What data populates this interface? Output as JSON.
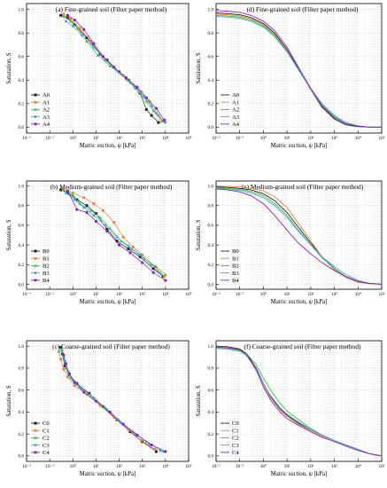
{
  "figure": {
    "x_ticks": [
      "10⁻²",
      "10⁻¹",
      "10⁰",
      "10¹",
      "10²",
      "10³",
      "10⁴",
      "10⁵"
    ],
    "y_ticks": [
      "0.0",
      "0.2",
      "0.4",
      "0.6",
      "0.8",
      "1.0"
    ],
    "colors": {
      "0": "#222222",
      "1": "#e8833a",
      "2": "#3fbf3f",
      "3": "#3fa9e0",
      "4": "#8b1fc7"
    }
  },
  "chart_data": [
    {
      "type": "scatter",
      "title": "(a) Fine-grained soil (Filter paper method)",
      "xlabel": "Matric suction, ψ [kPa]",
      "ylabel": "Saturation, S",
      "x_scale": "log",
      "xlim": [
        0.01,
        100000
      ],
      "ylim": [
        -0.05,
        1.05
      ],
      "legend_position": "bottom-left",
      "series": [
        {
          "name": "A0",
          "x": [
            0.3,
            0.6,
            1.2,
            4,
            15,
            30,
            100,
            250,
            500,
            800,
            1500,
            2500,
            5000
          ],
          "y": [
            0.95,
            0.93,
            0.87,
            0.76,
            0.62,
            0.57,
            0.47,
            0.4,
            0.34,
            0.29,
            0.15,
            0.1,
            0.04
          ]
        },
        {
          "name": "A1",
          "x": [
            0.4,
            0.8,
            2,
            6,
            20,
            50,
            150,
            400,
            900,
            2000,
            4000,
            8000
          ],
          "y": [
            0.96,
            0.92,
            0.84,
            0.73,
            0.6,
            0.52,
            0.44,
            0.36,
            0.3,
            0.22,
            0.12,
            0.05
          ]
        },
        {
          "name": "A2",
          "x": [
            0.4,
            0.8,
            1.6,
            4,
            12,
            40,
            120,
            300,
            700,
            1500,
            3000,
            7000
          ],
          "y": [
            0.94,
            0.9,
            0.84,
            0.73,
            0.61,
            0.52,
            0.45,
            0.38,
            0.3,
            0.22,
            0.14,
            0.05
          ]
        },
        {
          "name": "A3",
          "x": [
            0.5,
            1,
            2.5,
            8,
            25,
            80,
            200,
            500,
            1200,
            2500,
            5000,
            10000
          ],
          "y": [
            0.9,
            0.86,
            0.78,
            0.68,
            0.57,
            0.48,
            0.41,
            0.33,
            0.26,
            0.18,
            0.1,
            0.04
          ]
        },
        {
          "name": "A4",
          "x": [
            0.6,
            1.2,
            3,
            8,
            20,
            60,
            200,
            600,
            1500,
            4000,
            9000
          ],
          "y": [
            0.95,
            0.91,
            0.83,
            0.71,
            0.6,
            0.51,
            0.42,
            0.34,
            0.25,
            0.16,
            0.06
          ]
        }
      ]
    },
    {
      "type": "line",
      "title": "(d) Fine-grained soil (Filter paper method)",
      "xlabel": "Matric suction, ψ [kPa]",
      "ylabel": "Saturation, S",
      "x_scale": "log",
      "xlim": [
        0.01,
        100000
      ],
      "ylim": [
        -0.05,
        1.05
      ],
      "legend_position": "bottom-left",
      "series": [
        {
          "name": "A0",
          "x": [
            0.01,
            0.03,
            0.1,
            0.3,
            1,
            3,
            10,
            30,
            100,
            300,
            1000,
            3000,
            10000,
            30000,
            100000
          ],
          "y": [
            0.97,
            0.965,
            0.955,
            0.93,
            0.88,
            0.8,
            0.66,
            0.5,
            0.32,
            0.17,
            0.07,
            0.02,
            0.005,
            0.0,
            0.0
          ]
        },
        {
          "name": "A1",
          "x": [
            0.01,
            0.03,
            0.1,
            0.3,
            1,
            3,
            10,
            30,
            100,
            300,
            1000,
            3000,
            10000,
            30000,
            100000
          ],
          "y": [
            0.96,
            0.955,
            0.945,
            0.92,
            0.87,
            0.79,
            0.65,
            0.49,
            0.32,
            0.18,
            0.08,
            0.03,
            0.01,
            0.0,
            0.0
          ]
        },
        {
          "name": "A2",
          "x": [
            0.01,
            0.03,
            0.1,
            0.3,
            1,
            3,
            10,
            30,
            100,
            300,
            1000,
            3000,
            10000,
            30000,
            100000
          ],
          "y": [
            0.95,
            0.945,
            0.935,
            0.91,
            0.86,
            0.78,
            0.64,
            0.49,
            0.33,
            0.19,
            0.09,
            0.04,
            0.01,
            0.0,
            0.0
          ]
        },
        {
          "name": "A3",
          "x": [
            0.01,
            0.03,
            0.1,
            0.3,
            1,
            3,
            10,
            30,
            100,
            300,
            1000,
            3000,
            10000,
            30000,
            100000
          ],
          "y": [
            0.94,
            0.935,
            0.925,
            0.9,
            0.85,
            0.77,
            0.64,
            0.49,
            0.33,
            0.2,
            0.1,
            0.04,
            0.01,
            0.0,
            0.0
          ]
        },
        {
          "name": "A4",
          "x": [
            0.01,
            0.03,
            0.1,
            0.3,
            1,
            3,
            10,
            30,
            100,
            300,
            1000,
            3000,
            10000,
            30000,
            100000
          ],
          "y": [
            0.99,
            0.985,
            0.975,
            0.95,
            0.9,
            0.82,
            0.68,
            0.51,
            0.33,
            0.18,
            0.08,
            0.03,
            0.01,
            0.0,
            0.0
          ]
        }
      ]
    },
    {
      "type": "scatter",
      "title": "(b) Medium-grained soil (Filter paper method)",
      "xlabel": "Matric suction, ψ [kPa]",
      "ylabel": "Saturation, S",
      "x_scale": "log",
      "xlim": [
        0.01,
        100000
      ],
      "ylim": [
        -0.05,
        1.05
      ],
      "legend_position": "bottom-left",
      "series": [
        {
          "name": "B0",
          "x": [
            0.3,
            0.6,
            1.5,
            4,
            10,
            30,
            80,
            250,
            800,
            3000,
            8000
          ],
          "y": [
            0.96,
            0.93,
            0.86,
            0.8,
            0.72,
            0.56,
            0.44,
            0.36,
            0.28,
            0.16,
            0.08
          ]
        },
        {
          "name": "B1",
          "x": [
            0.4,
            1,
            3,
            8,
            20,
            60,
            150,
            400,
            1000,
            3500,
            9000
          ],
          "y": [
            0.97,
            0.93,
            0.88,
            0.82,
            0.75,
            0.63,
            0.48,
            0.38,
            0.3,
            0.18,
            0.08
          ]
        },
        {
          "name": "B2",
          "x": [
            0.4,
            1,
            2,
            6,
            15,
            40,
            120,
            350,
            1200,
            4000,
            10000
          ],
          "y": [
            0.96,
            0.91,
            0.82,
            0.75,
            0.68,
            0.57,
            0.44,
            0.36,
            0.26,
            0.18,
            0.1
          ]
        },
        {
          "name": "B3",
          "x": [
            0.5,
            1.2,
            3,
            8,
            25,
            80,
            250,
            800,
            2500,
            6000
          ],
          "y": [
            0.93,
            0.86,
            0.78,
            0.7,
            0.6,
            0.48,
            0.39,
            0.3,
            0.2,
            0.11
          ]
        },
        {
          "name": "B4",
          "x": [
            0.6,
            1.5,
            4,
            10,
            30,
            100,
            300,
            1000,
            3000,
            10000
          ],
          "y": [
            0.95,
            0.76,
            0.73,
            0.64,
            0.54,
            0.4,
            0.32,
            0.22,
            0.12,
            0.04
          ]
        }
      ]
    },
    {
      "type": "line",
      "title": "(e) Medium-grained soil (Filter paper method)",
      "xlabel": "Matric suction, ψ [kPa]",
      "ylabel": "Saturation, S",
      "x_scale": "log",
      "xlim": [
        0.01,
        100000
      ],
      "ylim": [
        -0.05,
        1.05
      ],
      "legend_position": "bottom-left",
      "series": [
        {
          "name": "B0",
          "x": [
            0.01,
            0.03,
            0.1,
            0.3,
            1,
            3,
            10,
            30,
            100,
            300,
            1000,
            3000,
            10000,
            30000,
            100000
          ],
          "y": [
            0.99,
            0.985,
            0.975,
            0.96,
            0.92,
            0.85,
            0.73,
            0.58,
            0.42,
            0.28,
            0.16,
            0.08,
            0.03,
            0.01,
            0.0
          ]
        },
        {
          "name": "B1",
          "x": [
            0.01,
            0.03,
            0.1,
            0.3,
            1,
            3,
            10,
            30,
            100,
            300,
            1000,
            3000,
            10000,
            30000,
            100000
          ],
          "y": [
            1.0,
            0.995,
            0.99,
            0.975,
            0.95,
            0.89,
            0.78,
            0.62,
            0.44,
            0.28,
            0.15,
            0.07,
            0.02,
            0.005,
            0.0
          ]
        },
        {
          "name": "B2",
          "x": [
            0.01,
            0.03,
            0.1,
            0.3,
            1,
            3,
            10,
            30,
            100,
            300,
            1000,
            3000,
            10000,
            30000,
            100000
          ],
          "y": [
            0.98,
            0.975,
            0.965,
            0.945,
            0.9,
            0.82,
            0.7,
            0.55,
            0.4,
            0.27,
            0.16,
            0.08,
            0.03,
            0.01,
            0.0
          ]
        },
        {
          "name": "B3",
          "x": [
            0.01,
            0.03,
            0.1,
            0.3,
            1,
            3,
            10,
            30,
            100,
            300,
            1000,
            3000,
            10000,
            30000,
            100000
          ],
          "y": [
            0.97,
            0.965,
            0.955,
            0.93,
            0.88,
            0.8,
            0.68,
            0.54,
            0.4,
            0.28,
            0.18,
            0.1,
            0.04,
            0.01,
            0.0
          ]
        },
        {
          "name": "B4",
          "x": [
            0.01,
            0.03,
            0.1,
            0.3,
            1,
            3,
            10,
            30,
            100,
            300,
            1000,
            3000,
            10000,
            30000,
            100000
          ],
          "y": [
            0.97,
            0.96,
            0.94,
            0.9,
            0.82,
            0.7,
            0.55,
            0.42,
            0.31,
            0.22,
            0.14,
            0.08,
            0.03,
            0.01,
            0.0
          ]
        }
      ]
    },
    {
      "type": "scatter",
      "title": "(c) Coarse-grained soil (Filter paper method)",
      "xlabel": "Matric suction, ψ [kPa]",
      "ylabel": "Saturation, S",
      "x_scale": "log",
      "xlim": [
        0.01,
        100000
      ],
      "ylim": [
        -0.05,
        1.05
      ],
      "legend_position": "bottom-left",
      "series": [
        {
          "name": "C0",
          "x": [
            0.3,
            0.35,
            0.45,
            0.7,
            1.5,
            5,
            20,
            80,
            300,
            1000,
            4000
          ],
          "y": [
            0.99,
            0.93,
            0.82,
            0.74,
            0.66,
            0.57,
            0.45,
            0.33,
            0.22,
            0.13,
            0.04
          ]
        },
        {
          "name": "C1",
          "x": [
            0.25,
            0.3,
            0.4,
            0.6,
            1.2,
            4,
            15,
            60,
            250,
            900,
            3500
          ],
          "y": [
            0.95,
            0.88,
            0.79,
            0.72,
            0.64,
            0.56,
            0.46,
            0.35,
            0.24,
            0.14,
            0.06
          ]
        },
        {
          "name": "C2",
          "x": [
            0.3,
            0.4,
            0.5,
            0.8,
            2,
            6,
            25,
            100,
            400,
            1500,
            6000
          ],
          "y": [
            0.97,
            0.9,
            0.8,
            0.71,
            0.63,
            0.55,
            0.44,
            0.32,
            0.22,
            0.13,
            0.05
          ]
        },
        {
          "name": "C3",
          "x": [
            0.35,
            0.45,
            0.6,
            1,
            2.5,
            8,
            30,
            120,
            500,
            2000,
            8000
          ],
          "y": [
            0.96,
            0.86,
            0.77,
            0.69,
            0.61,
            0.53,
            0.42,
            0.3,
            0.2,
            0.11,
            0.04
          ]
        },
        {
          "name": "C4",
          "x": [
            0.4,
            0.5,
            0.7,
            1.2,
            3,
            10,
            40,
            150,
            600,
            2500,
            10000
          ],
          "y": [
            0.92,
            0.84,
            0.75,
            0.67,
            0.58,
            0.5,
            0.4,
            0.29,
            0.19,
            0.1,
            0.04
          ]
        }
      ]
    },
    {
      "type": "line",
      "title": "(f) Coarse-grained soil (Filter paper method)",
      "xlabel": "Matric suction, ψ [kPa]",
      "ylabel": "Saturation, S",
      "x_scale": "log",
      "xlim": [
        0.01,
        100000
      ],
      "ylim": [
        -0.05,
        1.05
      ],
      "legend_position": "bottom-left",
      "series": [
        {
          "name": "C0",
          "x": [
            0.01,
            0.03,
            0.1,
            0.2,
            0.5,
            1,
            2,
            5,
            10,
            30,
            100,
            300,
            1000,
            3000,
            10000,
            30000,
            100000
          ],
          "y": [
            1.0,
            0.995,
            0.975,
            0.93,
            0.8,
            0.66,
            0.54,
            0.43,
            0.37,
            0.3,
            0.24,
            0.19,
            0.14,
            0.1,
            0.06,
            0.02,
            0.0
          ]
        },
        {
          "name": "C1",
          "x": [
            0.01,
            0.03,
            0.1,
            0.2,
            0.5,
            1,
            2,
            5,
            10,
            30,
            100,
            300,
            1000,
            3000,
            10000,
            30000,
            100000
          ],
          "y": [
            0.99,
            0.985,
            0.965,
            0.92,
            0.79,
            0.65,
            0.53,
            0.42,
            0.36,
            0.29,
            0.23,
            0.18,
            0.14,
            0.1,
            0.06,
            0.02,
            0.0
          ]
        },
        {
          "name": "C2",
          "x": [
            0.01,
            0.03,
            0.1,
            0.2,
            0.5,
            1,
            2,
            5,
            10,
            30,
            100,
            300,
            1000,
            3000,
            10000,
            30000,
            100000
          ],
          "y": [
            0.98,
            0.975,
            0.96,
            0.93,
            0.83,
            0.71,
            0.6,
            0.48,
            0.41,
            0.33,
            0.25,
            0.19,
            0.14,
            0.1,
            0.06,
            0.02,
            0.0
          ]
        },
        {
          "name": "C3",
          "x": [
            0.01,
            0.03,
            0.1,
            0.2,
            0.5,
            1,
            2,
            5,
            10,
            30,
            100,
            300,
            1000,
            3000,
            10000,
            30000,
            100000
          ],
          "y": [
            0.98,
            0.975,
            0.955,
            0.91,
            0.79,
            0.66,
            0.55,
            0.44,
            0.38,
            0.31,
            0.24,
            0.19,
            0.14,
            0.1,
            0.06,
            0.02,
            0.0
          ]
        },
        {
          "name": "C4",
          "x": [
            0.01,
            0.03,
            0.1,
            0.2,
            0.5,
            1,
            2,
            5,
            10,
            30,
            100,
            300,
            1000,
            3000,
            10000,
            30000,
            100000
          ],
          "y": [
            0.99,
            0.985,
            0.97,
            0.92,
            0.78,
            0.63,
            0.51,
            0.4,
            0.34,
            0.28,
            0.22,
            0.17,
            0.13,
            0.09,
            0.05,
            0.02,
            0.0
          ]
        }
      ]
    }
  ]
}
